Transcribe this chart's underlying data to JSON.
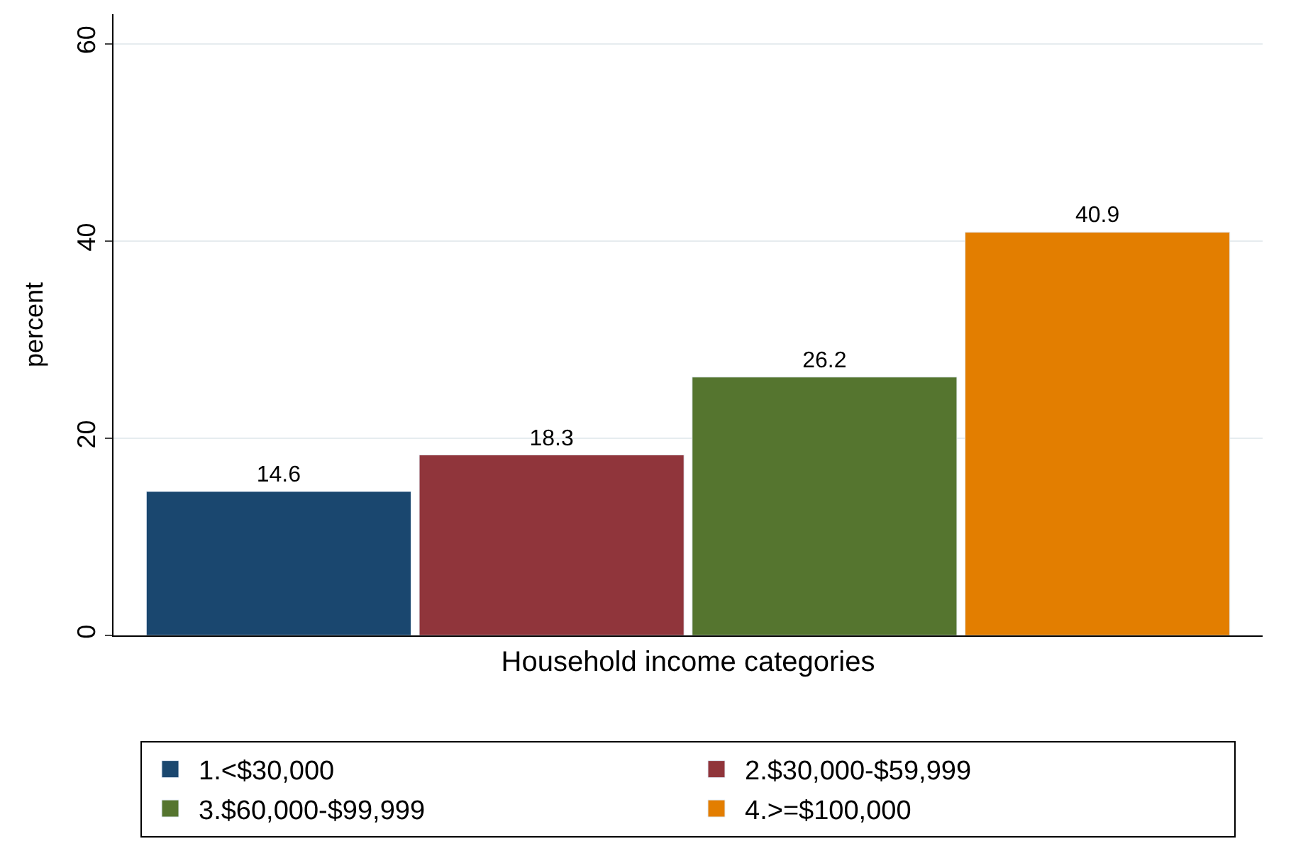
{
  "chart_data": {
    "type": "bar",
    "xlabel": "Household income categories",
    "ylabel": "percent",
    "categories": [
      null
    ],
    "series": [
      {
        "name": "1.<$30,000",
        "color": "#1a476f",
        "values": [
          14.6
        ]
      },
      {
        "name": "2.$30,000-$59,999",
        "color": "#90353b",
        "values": [
          18.3
        ]
      },
      {
        "name": "3.$60,000-$99,999",
        "color": "#55752f",
        "values": [
          26.2
        ]
      },
      {
        "name": "4.>=$100,000",
        "color": "#e37e00",
        "values": [
          40.9
        ]
      }
    ],
    "ylim": [
      0,
      63
    ],
    "yticks": [
      0,
      20,
      40,
      60
    ],
    "grid": "y",
    "legend": "bottom",
    "data_labels": true
  }
}
